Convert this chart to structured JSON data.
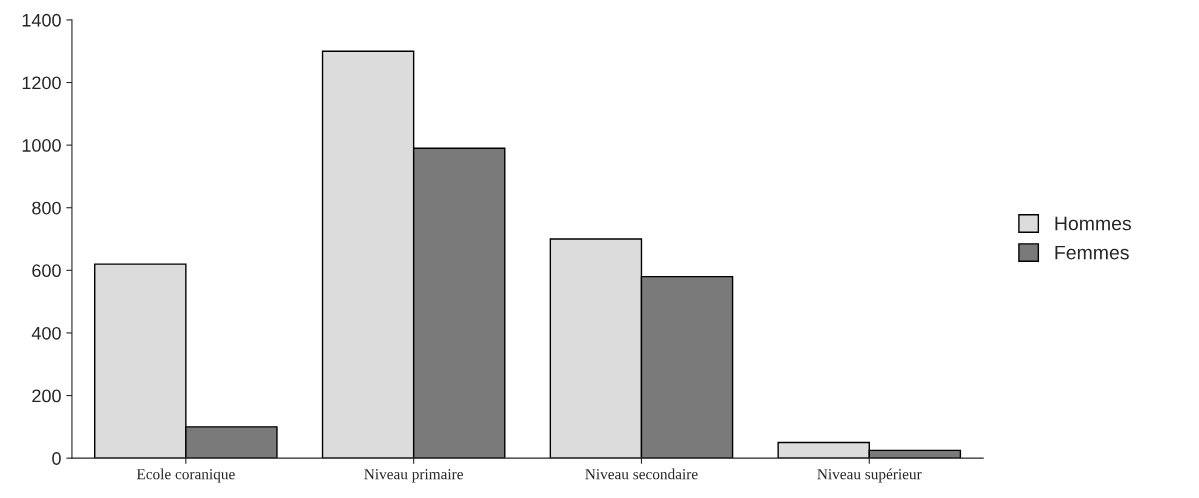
{
  "chart_data": {
    "type": "bar",
    "categories": [
      "Ecole coranique",
      "Niveau primaire",
      "Niveau secondaire",
      "Niveau supérieur"
    ],
    "series": [
      {
        "name": "Hommes",
        "color": "#dcdcdc",
        "values": [
          620,
          1300,
          700,
          50
        ]
      },
      {
        "name": "Femmes",
        "color": "#7a7a7a",
        "values": [
          100,
          990,
          580,
          25
        ]
      }
    ],
    "ylim": [
      0,
      1400
    ],
    "yticks": [
      0,
      200,
      400,
      600,
      800,
      1000,
      1200,
      1400
    ],
    "grid": false,
    "legend": "right"
  }
}
